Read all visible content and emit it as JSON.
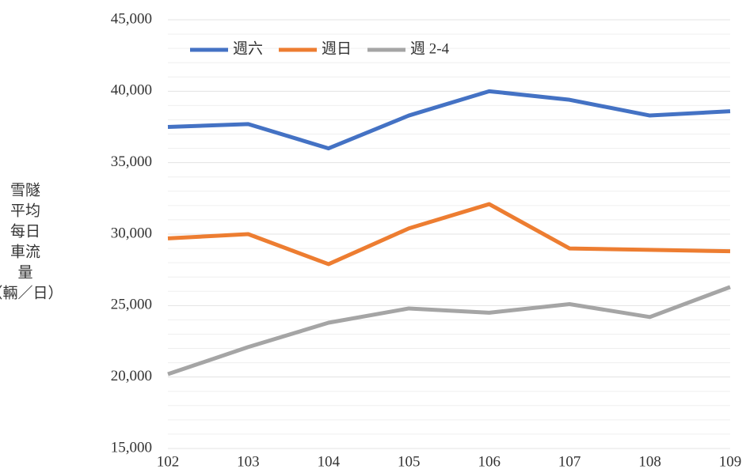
{
  "chart_data": {
    "type": "line",
    "ylabel": [
      "雪隧",
      "平均",
      "每日",
      "車流",
      "量",
      "（輛／日）"
    ],
    "categories": [
      "102",
      "103",
      "104",
      "105",
      "106",
      "107",
      "108",
      "109"
    ],
    "series": [
      {
        "name": "週六",
        "color": "#4472c4",
        "values": [
          37500,
          37700,
          36000,
          38300,
          40000,
          39400,
          38300,
          38600
        ]
      },
      {
        "name": "週日",
        "color": "#ed7d31",
        "values": [
          29700,
          30000,
          27900,
          30400,
          32100,
          29000,
          28900,
          28800
        ]
      },
      {
        "name": "週 2-4",
        "color": "#a5a5a5",
        "values": [
          20200,
          22100,
          23800,
          24800,
          24500,
          25100,
          24200,
          26300
        ]
      }
    ],
    "ylim": [
      15000,
      45000
    ],
    "yticks": [
      {
        "value": 15000,
        "label": "15,000"
      },
      {
        "value": 20000,
        "label": "20,000"
      },
      {
        "value": 25000,
        "label": "25,000"
      },
      {
        "value": 30000,
        "label": "30,000"
      },
      {
        "value": 35000,
        "label": "35,000"
      },
      {
        "value": 40000,
        "label": "40,000"
      },
      {
        "value": 45000,
        "label": "45,000"
      }
    ],
    "grid": true,
    "minor_grid": true,
    "legend": "upper left"
  }
}
